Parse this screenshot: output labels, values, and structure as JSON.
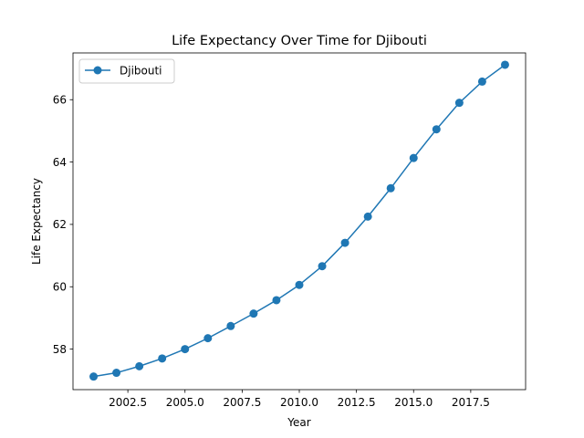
{
  "chart_data": {
    "type": "line",
    "title": "Life Expectancy Over Time for Djibouti",
    "xlabel": "Year",
    "ylabel": "Life Expectancy",
    "xlim": [
      2000.1,
      2019.9
    ],
    "ylim": [
      56.7,
      67.5
    ],
    "xticks": [
      2002.5,
      2005.0,
      2007.5,
      2010.0,
      2012.5,
      2015.0,
      2017.5
    ],
    "xtick_labels": [
      "2002.5",
      "2005.0",
      "2007.5",
      "2010.0",
      "2012.5",
      "2015.0",
      "2017.5"
    ],
    "yticks": [
      58,
      60,
      62,
      64,
      66
    ],
    "ytick_labels": [
      "58",
      "60",
      "62",
      "64",
      "66"
    ],
    "grid": false,
    "legend": {
      "position": "upper-left",
      "entries": [
        "Djibouti"
      ]
    },
    "series": [
      {
        "name": "Djibouti",
        "color": "#1f77b4",
        "marker": "circle",
        "x": [
          2001,
          2002,
          2003,
          2004,
          2005,
          2006,
          2007,
          2008,
          2009,
          2010,
          2011,
          2012,
          2013,
          2014,
          2015,
          2016,
          2017,
          2018,
          2019
        ],
        "y": [
          57.12,
          57.24,
          57.45,
          57.7,
          58.0,
          58.35,
          58.74,
          59.14,
          59.57,
          60.06,
          60.66,
          61.41,
          62.25,
          63.16,
          64.13,
          65.05,
          65.9,
          66.58,
          67.12
        ]
      }
    ]
  }
}
